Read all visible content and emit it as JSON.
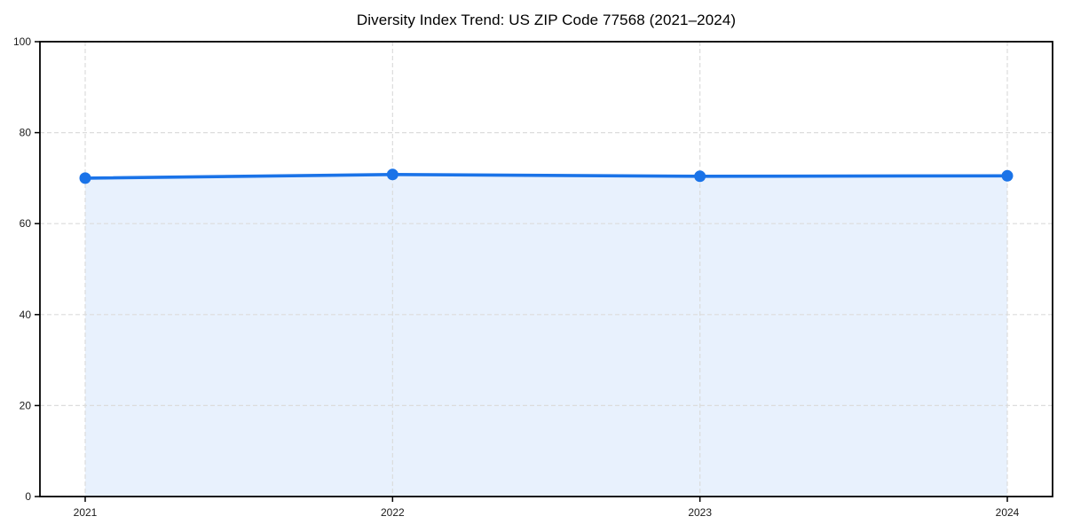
{
  "chart_data": {
    "type": "line",
    "title": "Diversity Index Trend: US ZIP Code 77568 (2021–2024)",
    "categories": [
      "2021",
      "2022",
      "2023",
      "2024"
    ],
    "values": [
      70.0,
      70.8,
      70.4,
      70.5
    ],
    "xlabel": "",
    "ylabel": "",
    "ylim": [
      0,
      100
    ],
    "yticks": [
      0,
      20,
      40,
      60,
      80,
      100
    ],
    "grid": true,
    "grid_style": "dashed",
    "legend": "none",
    "marker": "circle",
    "area_fill": true,
    "colors": {
      "line": "#1a73e8",
      "marker": "#1a73e8",
      "area_fill": "#e8f1fd",
      "grid": "#dcdcdc",
      "axis_frame": "#000000",
      "tick_text": "#1a1a1a",
      "title_text": "#000000",
      "background": "#ffffff"
    }
  }
}
